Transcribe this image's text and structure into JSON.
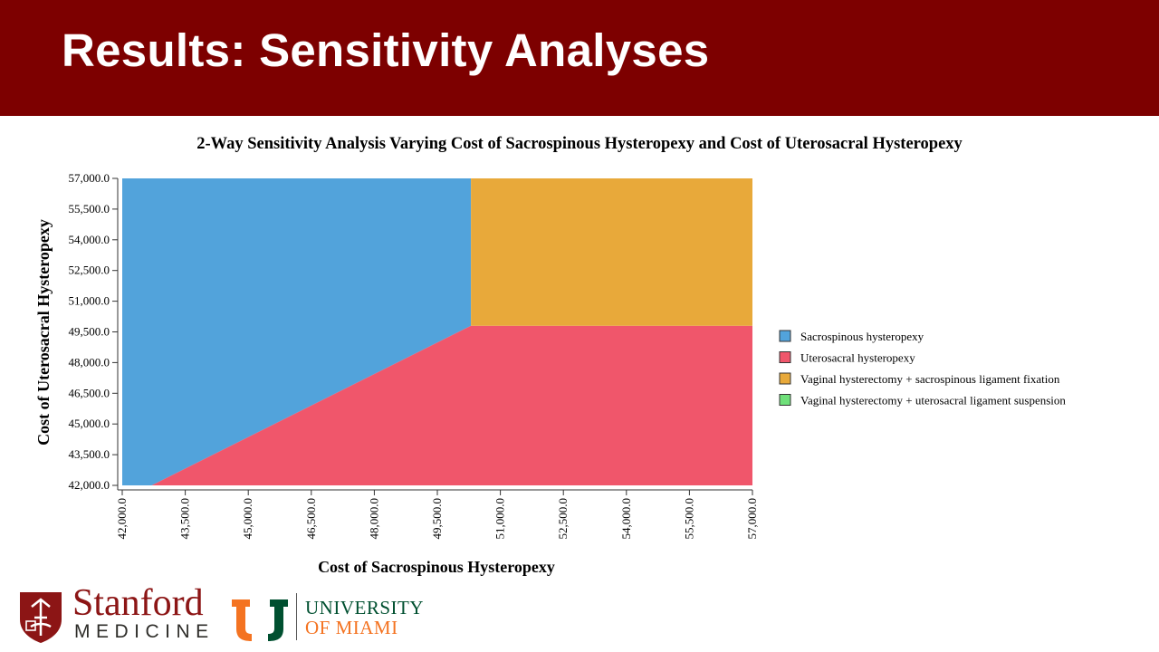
{
  "slide": {
    "title": "Results: Sensitivity Analyses"
  },
  "colors": {
    "header_bg": "#7d0000",
    "sacrospinous": "#52a3db",
    "uterosacral": "#f0566b",
    "vaginal_ssl": "#e8a93a",
    "vaginal_usl": "#6fe07a"
  },
  "chart_data": {
    "type": "area",
    "title": "2-Way Sensitivity Analysis Varying Cost of Sacrospinous Hysteropexy and Cost of Uterosacral Hysteropexy",
    "xlabel": "Cost of Sacrospinous Hysteropexy",
    "ylabel": "Cost of Uterosacral Hysteropexy",
    "xlim": [
      42000,
      57000
    ],
    "ylim": [
      42000,
      57000
    ],
    "x_ticks": [
      "42,000.0",
      "43,500.0",
      "45,000.0",
      "46,500.0",
      "48,000.0",
      "49,500.0",
      "51,000.0",
      "52,500.0",
      "54,000.0",
      "55,500.0",
      "57,000.0"
    ],
    "y_ticks": [
      "42,000.0",
      "43,500.0",
      "45,000.0",
      "46,500.0",
      "48,000.0",
      "49,500.0",
      "51,000.0",
      "52,500.0",
      "54,000.0",
      "55,500.0",
      "57,000.0"
    ],
    "legend_position": "right",
    "series": [
      {
        "name": "Sacrospinous hysteropexy",
        "color": "#52a3db",
        "polygon": [
          [
            42000,
            42000
          ],
          [
            42700,
            42000
          ],
          [
            50300,
            49800
          ],
          [
            50300,
            57000
          ],
          [
            42000,
            57000
          ]
        ]
      },
      {
        "name": "Uterosacral hysteropexy",
        "color": "#f0566b",
        "polygon": [
          [
            42700,
            42000
          ],
          [
            57000,
            42000
          ],
          [
            57000,
            49800
          ],
          [
            50300,
            49800
          ]
        ]
      },
      {
        "name": "Vaginal hysterectomy + sacrospinous ligament fixation",
        "color": "#e8a93a",
        "polygon": [
          [
            50300,
            49800
          ],
          [
            57000,
            49800
          ],
          [
            57000,
            57000
          ],
          [
            50300,
            57000
          ]
        ]
      },
      {
        "name": "Vaginal hysterectomy + uterosacral ligament suspension",
        "color": "#6fe07a",
        "polygon": []
      }
    ]
  },
  "logos": {
    "stanford_word": "Stanford",
    "stanford_sub": "MEDICINE",
    "miami_line1": "UNIVERSITY",
    "miami_line2": "OF MIAMI"
  }
}
